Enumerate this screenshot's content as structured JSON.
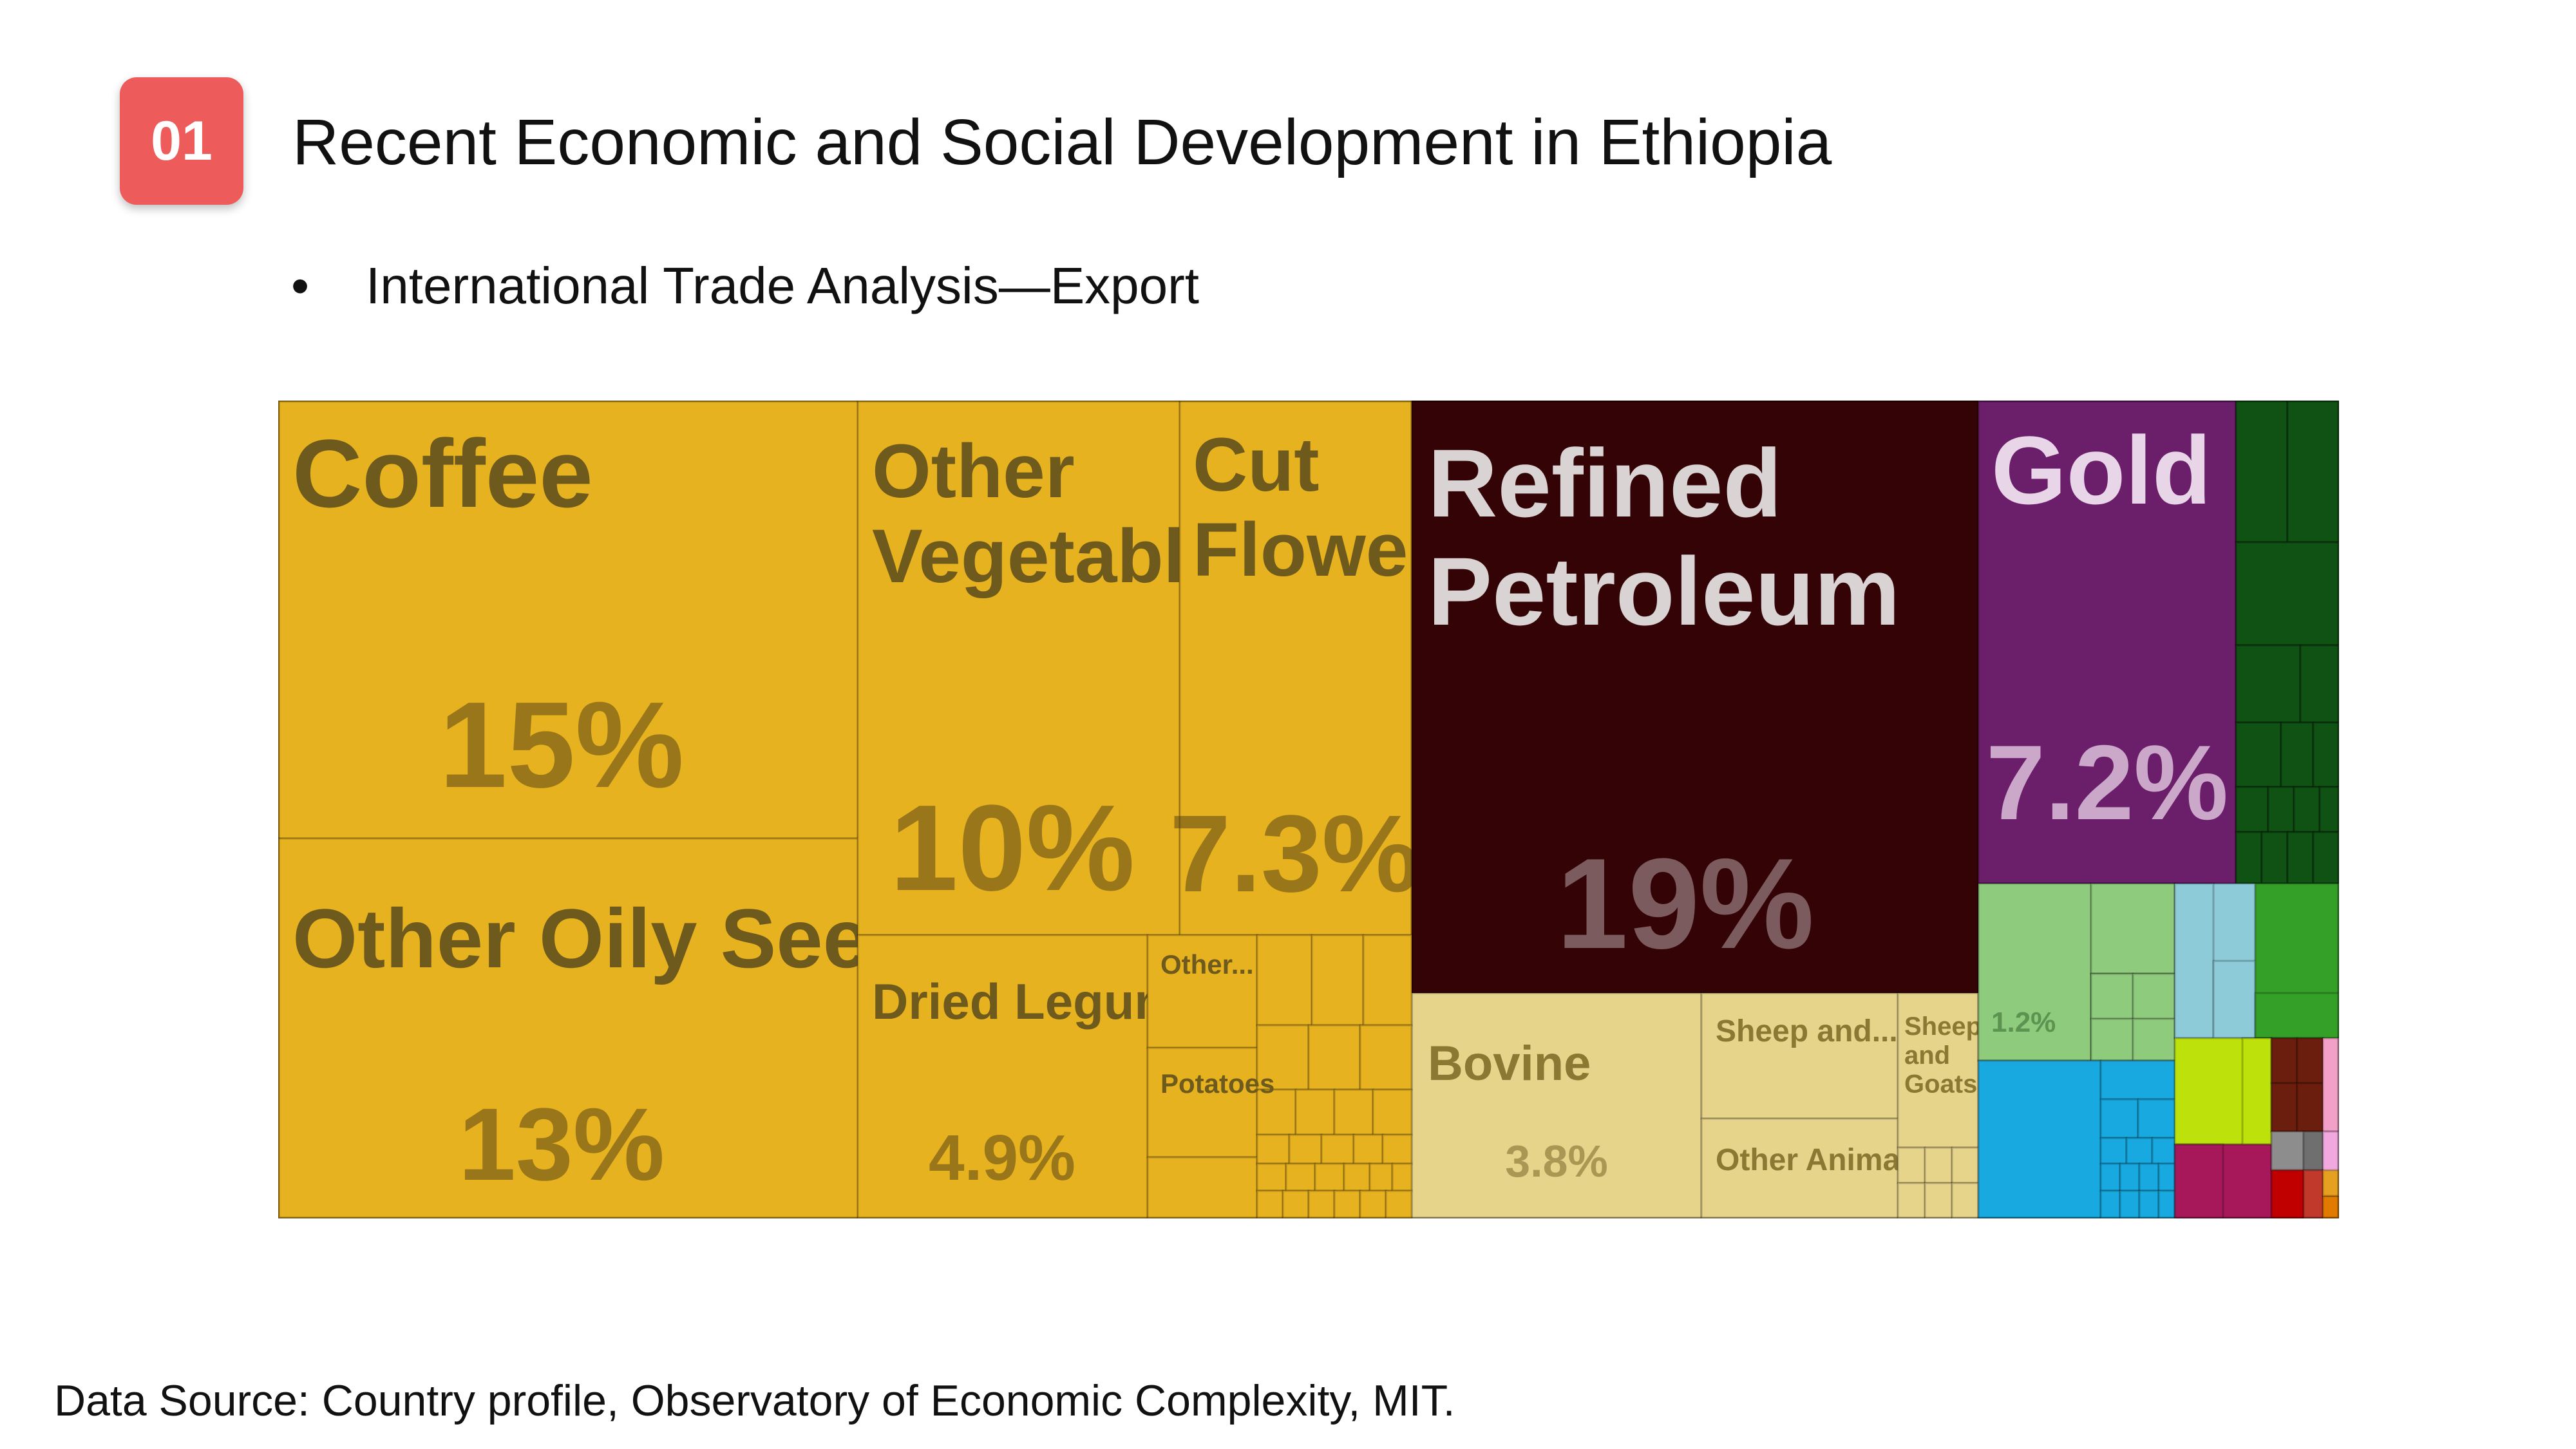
{
  "slide": {
    "number": "01",
    "title": "Recent Economic and Social Development in Ethiopia",
    "bullet": "International Trade Analysis—Export",
    "source": "Data Source: Country profile, Observatory of Economic Complexity, MIT."
  },
  "colors": {
    "badge": "#ee5b5b",
    "vegetable_products": "#e7b21f",
    "mineral_products": "#330306",
    "animal_products": "#e7d48b",
    "precious_metals": "#6b1e6a",
    "dark_green": "#0f5213"
  },
  "chart_data": {
    "type": "treemap",
    "title": "",
    "value_unit": "% of exports",
    "items": [
      {
        "label": "Coffee",
        "value": 15,
        "value_label": "15%",
        "color": "#e7b21f"
      },
      {
        "label": "Other Oily Seeds",
        "value": 13,
        "value_label": "13%",
        "color": "#e7b21f"
      },
      {
        "label": "Other Vegetables",
        "value": 10,
        "value_label": "10%",
        "color": "#e7b21f"
      },
      {
        "label": "Cut Flowers",
        "value": 7.3,
        "value_label": "7.3%",
        "color": "#e7b21f"
      },
      {
        "label": "Dried Legumes",
        "value": 4.9,
        "value_label": "4.9%",
        "color": "#e7b21f"
      },
      {
        "label": "Other...",
        "value": null,
        "value_label": "",
        "color": "#e7b21f"
      },
      {
        "label": "Potatoes",
        "value": null,
        "value_label": "",
        "color": "#e7b21f"
      },
      {
        "label": "Refined Petroleum",
        "value": 19,
        "value_label": "19%",
        "color": "#330306"
      },
      {
        "label": "Bovine",
        "value": 3.8,
        "value_label": "3.8%",
        "color": "#e7d48b"
      },
      {
        "label": "Sheep and...",
        "value": null,
        "value_label": "",
        "color": "#e7d48b"
      },
      {
        "label": "Other Animals",
        "value": null,
        "value_label": "",
        "color": "#e7d48b"
      },
      {
        "label": "Sheep and Goats",
        "value": null,
        "value_label": "",
        "color": "#e7d48b"
      },
      {
        "label": "Gold",
        "value": 7.2,
        "value_label": "7.2%",
        "color": "#6b1e6a"
      },
      {
        "label": "",
        "value": 1.2,
        "value_label": "1.2%",
        "color": "#8ecb7d"
      }
    ]
  }
}
